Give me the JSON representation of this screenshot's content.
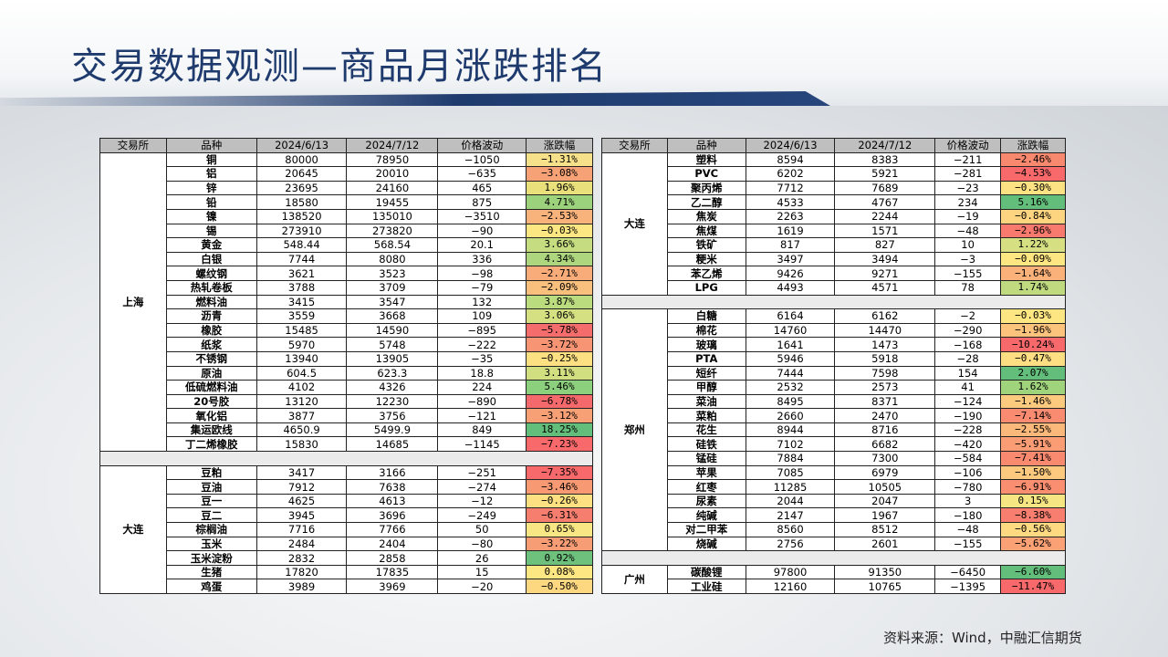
{
  "title": "交易数据观测—商品月涨跌排名",
  "source": "资料来源：Wind，中融汇信期货",
  "headers": [
    "交易所",
    "品种",
    "2024/6/13",
    "2024/7/12",
    "价格波动",
    "涨跌幅"
  ],
  "left_table": [
    {
      "exchange": "上海",
      "rows": [
        [
          "铜",
          "80000",
          "78950",
          "−1050",
          "−1.31%",
          "#f6e08a"
        ],
        [
          "铝",
          "20645",
          "20010",
          "−635",
          "−3.08%",
          "#f7a276"
        ],
        [
          "锌",
          "23695",
          "24160",
          "465",
          "1.96%",
          "#e9e07c"
        ],
        [
          "铅",
          "18580",
          "19455",
          "875",
          "4.71%",
          "#9cd27c"
        ],
        [
          "镍",
          "138520",
          "135010",
          "−3510",
          "−2.53%",
          "#f8b27c"
        ],
        [
          "锡",
          "273910",
          "273820",
          "−90",
          "−0.03%",
          "#fde783"
        ],
        [
          "黄金",
          "548.44",
          "568.54",
          "20.1",
          "3.66%",
          "#c5dd80"
        ],
        [
          "白银",
          "7744",
          "8080",
          "336",
          "4.34%",
          "#aed67e"
        ],
        [
          "螺纹钢",
          "3621",
          "3523",
          "−98",
          "−2.71%",
          "#f8ac7a"
        ],
        [
          "热轧卷板",
          "3788",
          "3709",
          "−79",
          "−2.09%",
          "#f9bf7d"
        ],
        [
          "燃料油",
          "3415",
          "3547",
          "132",
          "3.87%",
          "#bbdb7f"
        ],
        [
          "沥青",
          "3559",
          "3668",
          "109",
          "3.06%",
          "#d4e081"
        ],
        [
          "橡胶",
          "15485",
          "14590",
          "−895",
          "−5.78%",
          "#f46d6c"
        ],
        [
          "纸浆",
          "5970",
          "5748",
          "−222",
          "−3.72%",
          "#f79473"
        ],
        [
          "不锈钢",
          "13940",
          "13905",
          "−35",
          "−0.25%",
          "#fde082"
        ],
        [
          "原油",
          "604.5",
          "623.3",
          "18.8",
          "3.11%",
          "#d2df81"
        ],
        [
          "低硫燃料油",
          "4102",
          "4326",
          "224",
          "5.46%",
          "#8ccf7d"
        ],
        [
          "20号胶",
          "13120",
          "12230",
          "−890",
          "−6.78%",
          "#f46a6c"
        ],
        [
          "氧化铝",
          "3877",
          "3756",
          "−121",
          "−3.12%",
          "#f7a075"
        ],
        [
          "集运欧线",
          "4650.9",
          "5499.9",
          "849",
          "18.25%",
          "#63be7b"
        ],
        [
          "丁二烯橡胶",
          "15830",
          "14685",
          "−1145",
          "−7.23%",
          "#f8696b"
        ]
      ]
    },
    {
      "exchange": "大连",
      "rows": [
        [
          "豆粕",
          "3417",
          "3166",
          "−251",
          "−7.35%",
          "#f8696b"
        ],
        [
          "豆油",
          "7912",
          "7638",
          "−274",
          "−3.46%",
          "#f79a74"
        ],
        [
          "豆一",
          "4625",
          "4613",
          "−12",
          "−0.26%",
          "#fde082"
        ],
        [
          "豆二",
          "3945",
          "3696",
          "−249",
          "−6.31%",
          "#f57e6f"
        ],
        [
          "棕榈油",
          "7716",
          "7766",
          "50",
          "0.65%",
          "#f7e683"
        ],
        [
          "玉米",
          "2484",
          "2404",
          "−80",
          "−3.22%",
          "#f79d75"
        ],
        [
          "玉米淀粉",
          "2832",
          "2858",
          "26",
          "0.92%",
          "#6dc17c"
        ],
        [
          "生猪",
          "17820",
          "17835",
          "15",
          "0.08%",
          "#fde783"
        ],
        [
          "鸡蛋",
          "3989",
          "3969",
          "−20",
          "−0.50%",
          "#fdd881"
        ]
      ]
    }
  ],
  "right_table": [
    {
      "exchange": "大连",
      "rows": [
        [
          "塑料",
          "8594",
          "8383",
          "−211",
          "−2.46%",
          "#f8896f"
        ],
        [
          "PVC",
          "6202",
          "5921",
          "−281",
          "−4.53%",
          "#f8696b"
        ],
        [
          "聚丙烯",
          "7712",
          "7689",
          "−23",
          "−0.30%",
          "#fde283"
        ],
        [
          "乙二醇",
          "4533",
          "4767",
          "234",
          "5.16%",
          "#63be7b"
        ],
        [
          "焦炭",
          "2263",
          "2244",
          "−19",
          "−0.84%",
          "#fdd480"
        ],
        [
          "焦煤",
          "1619",
          "1571",
          "−48",
          "−2.96%",
          "#f8796e"
        ],
        [
          "铁矿",
          "817",
          "827",
          "10",
          "1.22%",
          "#d6e082"
        ],
        [
          "粳米",
          "3497",
          "3494",
          "−3",
          "−0.09%",
          "#fee683"
        ],
        [
          "苯乙烯",
          "9426",
          "9271",
          "−155",
          "−1.64%",
          "#fbb27a"
        ],
        [
          "LPG",
          "4493",
          "4571",
          "78",
          "1.74%",
          "#c0da80"
        ]
      ]
    },
    {
      "exchange": "郑州",
      "rows": [
        [
          "白糖",
          "6164",
          "6162",
          "−2",
          "−0.03%",
          "#fee783"
        ],
        [
          "棉花",
          "14760",
          "14470",
          "−290",
          "−1.96%",
          "#fcc37c"
        ],
        [
          "玻璃",
          "1641",
          "1473",
          "−168",
          "−10.24%",
          "#f8696b"
        ],
        [
          "PTA",
          "5946",
          "5918",
          "−28",
          "−0.47%",
          "#fede82"
        ],
        [
          "短纤",
          "7444",
          "7598",
          "154",
          "2.07%",
          "#63be7b"
        ],
        [
          "甲醇",
          "2532",
          "2573",
          "41",
          "1.62%",
          "#9fd47d"
        ],
        [
          "菜油",
          "8495",
          "8371",
          "−124",
          "−1.46%",
          "#fcca7e"
        ],
        [
          "菜粕",
          "2660",
          "2470",
          "−190",
          "−7.14%",
          "#f98c70"
        ],
        [
          "花生",
          "8944",
          "8716",
          "−228",
          "−2.55%",
          "#fbb87b"
        ],
        [
          "硅铁",
          "7102",
          "6682",
          "−420",
          "−5.91%",
          "#fa9c74"
        ],
        [
          "锰硅",
          "7884",
          "7300",
          "−584",
          "−7.41%",
          "#f98a70"
        ],
        [
          "苹果",
          "7085",
          "6979",
          "−106",
          "−1.50%",
          "#fcc97e"
        ],
        [
          "红枣",
          "11285",
          "10505",
          "−780",
          "−6.91%",
          "#f98e70"
        ],
        [
          "尿素",
          "2044",
          "2047",
          "3",
          "0.15%",
          "#f6e683"
        ],
        [
          "纯碱",
          "2147",
          "1967",
          "−180",
          "−8.38%",
          "#f87f6f"
        ],
        [
          "对二甲苯",
          "8560",
          "8512",
          "−48",
          "−0.56%",
          "#fdd981"
        ],
        [
          "烧碱",
          "2756",
          "2601",
          "−155",
          "−5.62%",
          "#faa176"
        ]
      ]
    },
    {
      "exchange": "广州",
      "rows": [
        [
          "碳酸锂",
          "97800",
          "91350",
          "−6450",
          "−6.60%",
          "#63be7b"
        ],
        [
          "工业硅",
          "12160",
          "10765",
          "−1395",
          "−11.47%",
          "#f8696b"
        ]
      ]
    }
  ]
}
